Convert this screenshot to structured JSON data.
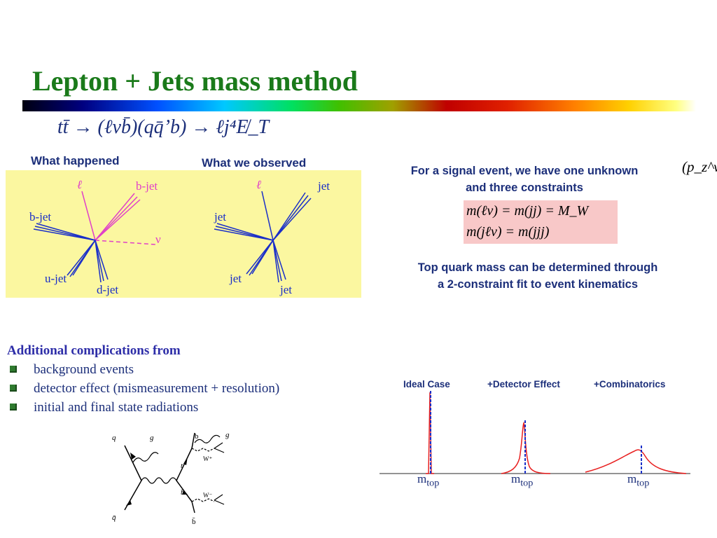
{
  "slide": {
    "title": "Lepton + Jets mass method",
    "formula": "tt̄ → (ℓνb̄)(qq̄’b) → ℓj⁴E̸_T"
  },
  "diagrams": {
    "happened": {
      "heading": "What happened",
      "labels": {
        "lepton": "ℓ",
        "bjet_top": "b-jet",
        "bjet_left": "b-jet",
        "neutrino": "ν",
        "ujet": "u-jet",
        "djet": "d-jet"
      }
    },
    "observed": {
      "heading": "What we observed",
      "labels": {
        "lepton": "ℓ",
        "jet_top": "jet",
        "jet_left": "jet",
        "jet_bottom_left": "jet",
        "jet_bottom": "jet"
      }
    },
    "colors": {
      "panel": "#fbf7a0",
      "lepton": "#e040c8",
      "jets": "#1a2fc8"
    }
  },
  "notes": {
    "signal_line1": "For a signal event, we have one unknown",
    "signal_line2": "and three constraints",
    "unknown_symbol": "(p_z^ν)",
    "constraint_1": "m(ℓν) = m(jj) = M_W",
    "constraint_2": "m(jℓν) = m(jjj)",
    "fit_line1": "Top quark mass can be determined through",
    "fit_line2": "a 2-constraint fit to event kinematics"
  },
  "complications": {
    "heading": "Additional complications from",
    "items": [
      "background events",
      "detector effect (mismeasurement +   resolution)",
      "initial and final state radiations"
    ]
  },
  "feynman": {
    "labels": {
      "q": "q",
      "g_left": "g",
      "qbar": "q̄",
      "t": "t",
      "tbar": "t̄",
      "b_top": "b",
      "g_right": "g",
      "w_top": "W⁺",
      "b_bottom": "b̄",
      "w_bottom": "W⁻"
    }
  },
  "histograms": {
    "captions": [
      "Ideal Case",
      "+Detector Effect",
      "+Combinatorics"
    ],
    "mtop_label": "m",
    "mtop_sub": "top",
    "colors": {
      "curve": "#e82020",
      "marker": "#1a2fc8"
    }
  }
}
